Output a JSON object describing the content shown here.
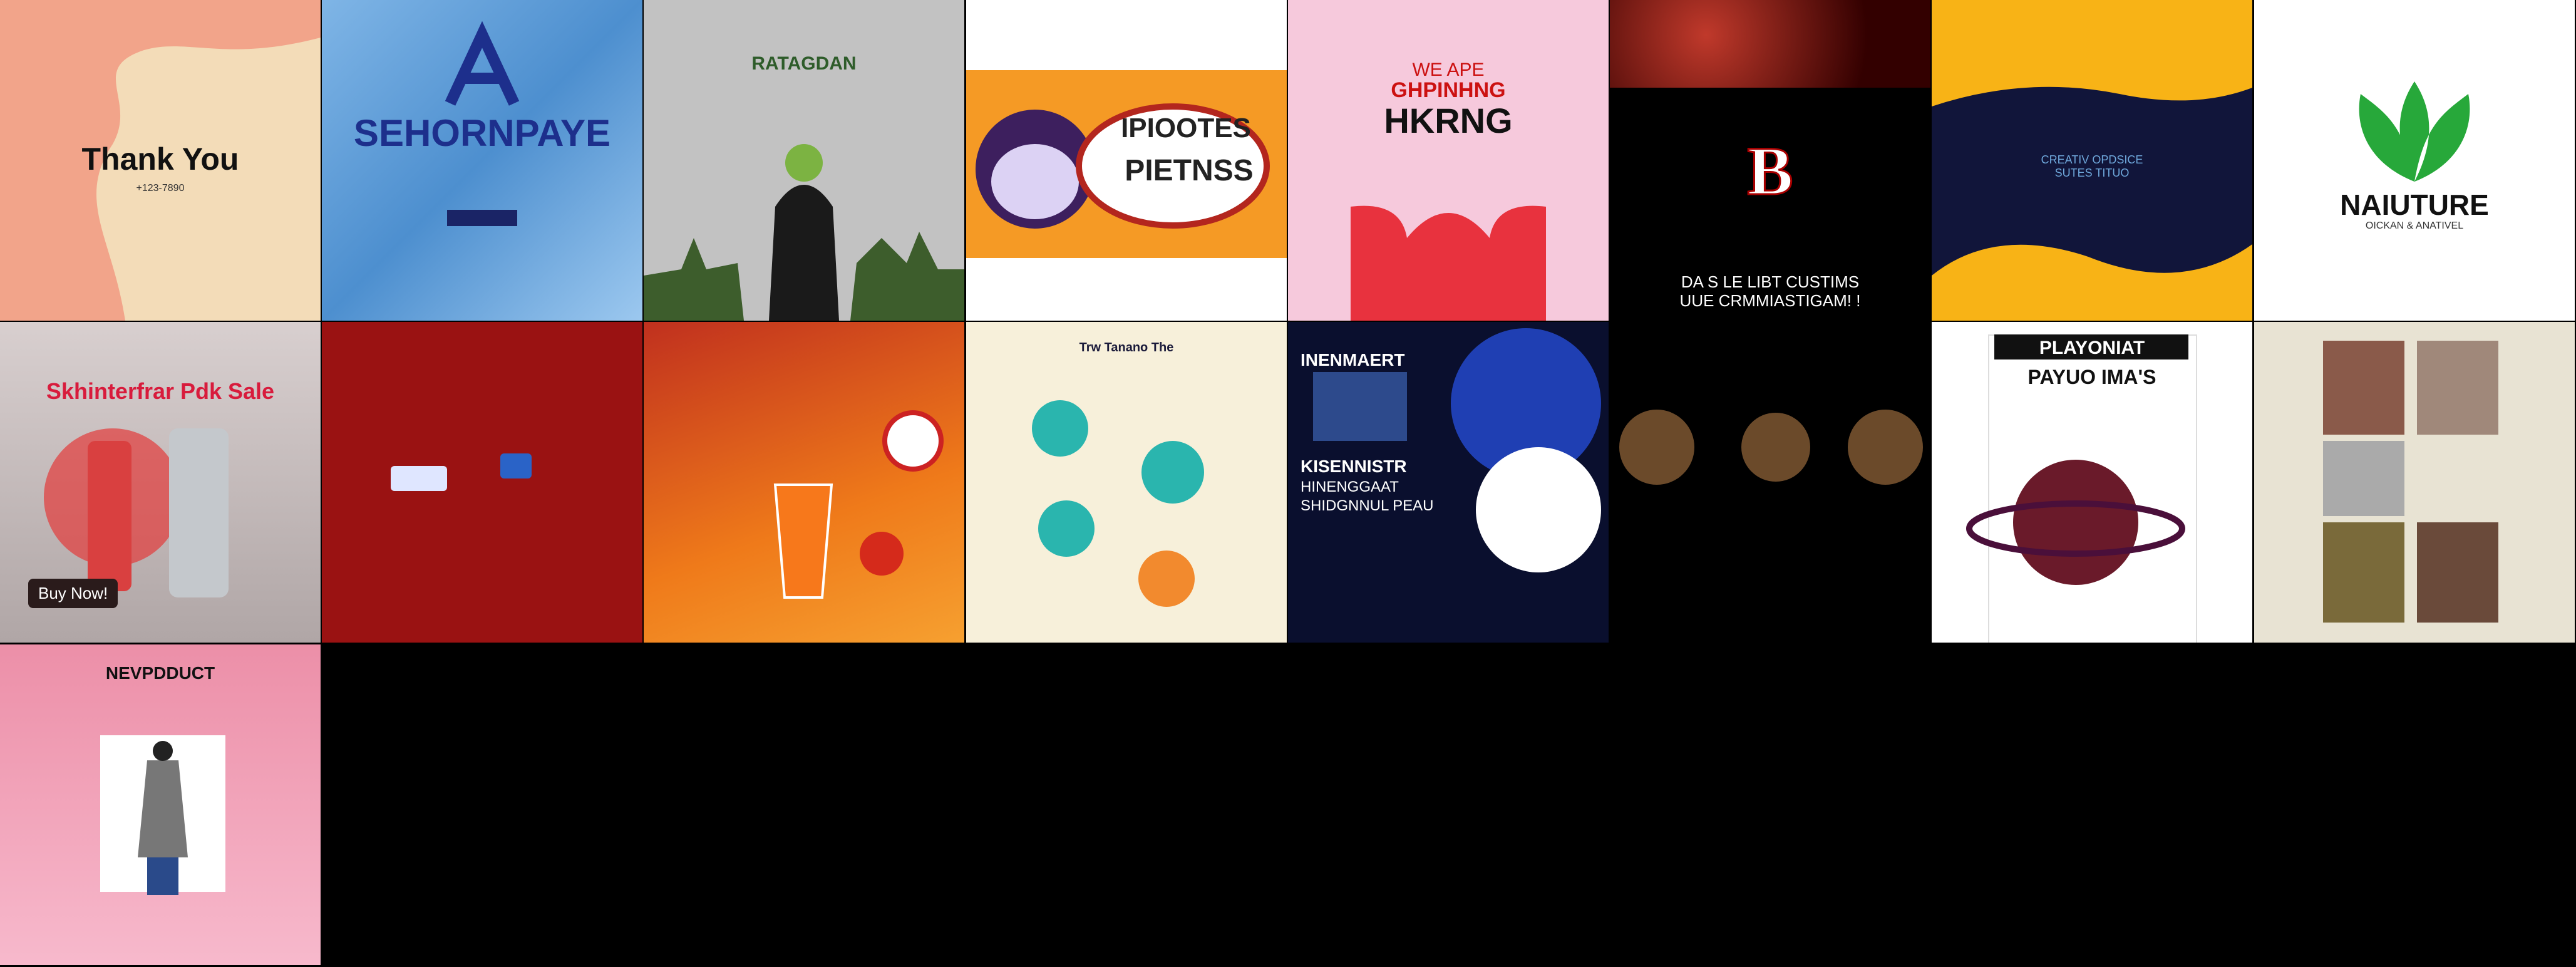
{
  "tiles": [
    {
      "texts": [
        "Thank You",
        "+123-7890"
      ]
    },
    {
      "texts": [
        "SEHORNPAYE"
      ]
    },
    {
      "texts": [
        "RATAGDAN"
      ]
    },
    {
      "texts": [
        "IPIOOTES",
        "PIETNSS"
      ]
    },
    {
      "texts": [
        "WE APE",
        "GHPINHNG",
        "HKRNG"
      ]
    },
    {
      "texts": [
        "B",
        "DA S LE LIBT CUSTIMS",
        "UUE CRMMIASTIGAM! !"
      ]
    },
    {
      "texts": [
        "CREATIV OPDSICE",
        "SUTES TITUO"
      ]
    },
    {
      "texts": [
        "NAIUTURE",
        "OICKAN & ANATIVEL"
      ]
    },
    {
      "texts": [
        "Skhinterfrar Pdk Sale",
        "Buy Now!"
      ]
    },
    {
      "texts": []
    },
    {
      "texts": []
    },
    {
      "texts": [
        "Trw Tanano The"
      ]
    },
    {
      "texts": [
        "INENMAERT",
        "KISENNISTR",
        "HINENGGAAT",
        "SHIDGNNUL PEAU"
      ]
    },
    {
      "texts": []
    },
    {
      "texts": [
        "PLAYONIAT",
        "PAYUO IMA'S"
      ]
    },
    {
      "texts": []
    },
    {
      "texts": [
        "NEVPDDUCT"
      ]
    }
  ]
}
